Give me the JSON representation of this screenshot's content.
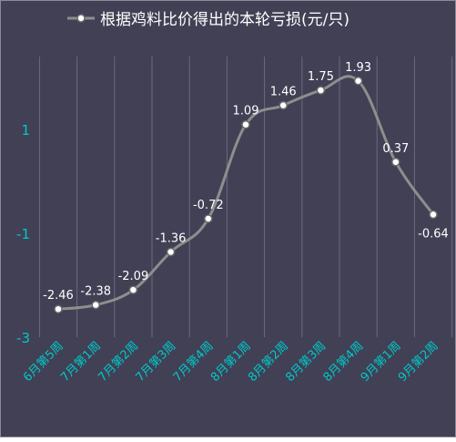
{
  "chart_data": {
    "type": "line",
    "title": "根据鸡料比价得出的本轮亏损(元/只)",
    "categories": [
      "6月第5周",
      "7月第1周",
      "7月第2周",
      "7月第3周",
      "7月第4周",
      "8月第1周",
      "8月第2周",
      "8月第3周",
      "8月第4周",
      "9月第1周",
      "9月第2周"
    ],
    "series": [
      {
        "name": "根据鸡料比价得出的本轮亏损(元/只)",
        "values": [
          -2.46,
          -2.38,
          -2.09,
          -1.36,
          -0.72,
          1.09,
          1.46,
          1.75,
          1.93,
          0.37,
          -0.64
        ],
        "data_labels": [
          "-2.46",
          "-2.38",
          "-2.09",
          "-1.36",
          "-0.72",
          "1.09",
          "1.46",
          "1.75",
          "1.93",
          "0.37",
          "-0.64"
        ]
      }
    ],
    "yticks": [
      1,
      -1,
      -3
    ],
    "ylim": [
      -3,
      2.4
    ],
    "grid": "vertical",
    "legend": "top",
    "smooth": true,
    "colors": {
      "background": "#414055",
      "border": "#8a8a9a",
      "gridline": "#6a6a80",
      "line": "#8e8e8e",
      "marker_fill": "#ffffff",
      "marker_stroke": "#6a6a6a",
      "text": "#ffffff",
      "axis_text": "#00c8c8"
    }
  }
}
